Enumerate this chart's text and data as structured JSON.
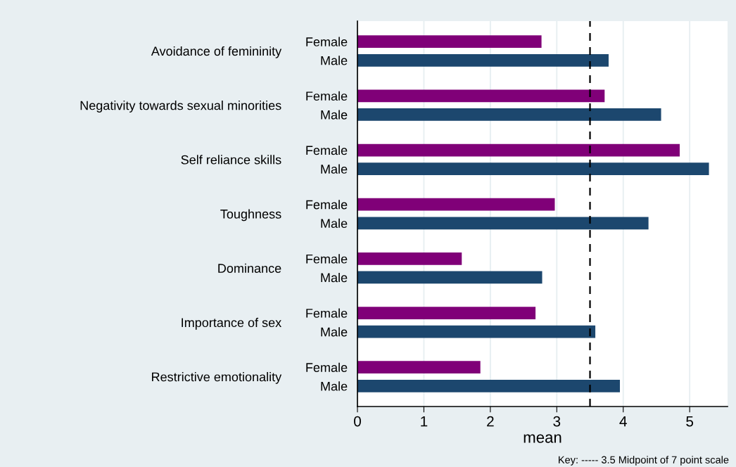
{
  "chart_data": {
    "type": "bar",
    "orientation": "horizontal",
    "categories": [
      "Avoidance of femininity",
      "Negativity towards sexual minorities",
      "Self reliance skills",
      "Toughness",
      "Dominance",
      "Importance of sex",
      "Restrictive emotionality"
    ],
    "series": [
      {
        "name": "Female",
        "color": "#800078",
        "values": [
          2.77,
          3.72,
          4.85,
          2.97,
          1.57,
          2.68,
          1.85
        ]
      },
      {
        "name": "Male",
        "color": "#1c476e",
        "values": [
          3.78,
          4.57,
          5.29,
          4.38,
          2.78,
          3.58,
          3.95
        ]
      }
    ],
    "xlabel": "mean",
    "xlim": [
      0,
      5.57
    ],
    "xticks": [
      0,
      1,
      2,
      3,
      4,
      5
    ],
    "grid": "x",
    "ref_lines": [
      {
        "axis": "x",
        "value": 3.5,
        "color": "#000000",
        "line_style": "dashed"
      }
    ],
    "annotations": [
      "Key: ----- 3.5 Midpoint of 7 point scale"
    ]
  }
}
